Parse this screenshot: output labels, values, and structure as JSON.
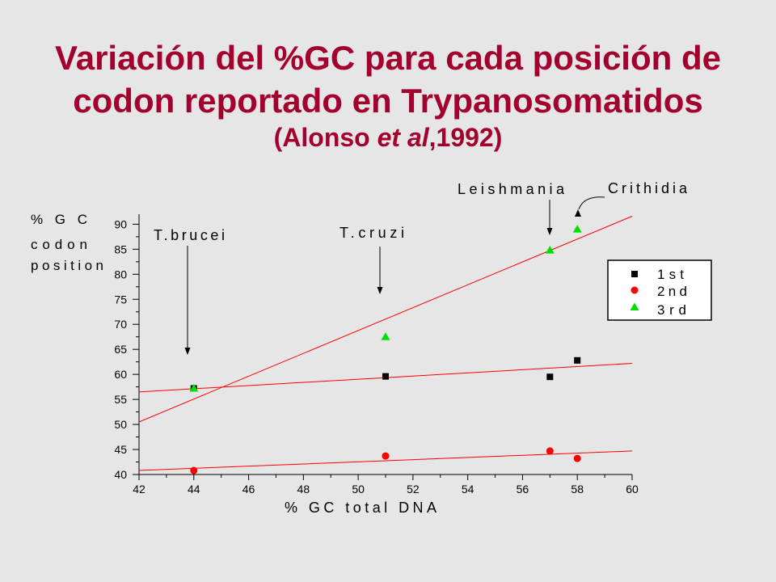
{
  "slide": {
    "title_lines": [
      "Variación del %GC para cada posición de",
      "codon reportado en Trypanosomatidos"
    ],
    "citation": {
      "prefix": "(Alonso ",
      "italic": "et al",
      "suffix": ",1992)"
    }
  },
  "colors": {
    "background": "#e6e6e6",
    "title": "#a3002e",
    "trendline": "#ff0000",
    "axis": "#000000"
  },
  "chart_data": {
    "type": "scatter",
    "xlabel": "% GC total DNA",
    "ylabel_lines": [
      "%GC",
      "codon",
      "position"
    ],
    "xlim": [
      42,
      60
    ],
    "ylim": [
      40,
      92
    ],
    "xticks": [
      42,
      44,
      46,
      48,
      50,
      52,
      54,
      56,
      58,
      60
    ],
    "yticks": [
      40,
      45,
      50,
      55,
      60,
      65,
      70,
      75,
      80,
      85,
      90
    ],
    "grid": false,
    "legend": "right",
    "series": [
      {
        "name": "1st",
        "marker": "square",
        "color": "#000000",
        "x": [
          44,
          51,
          57,
          58
        ],
        "y": [
          57.2,
          59.6,
          59.5,
          62.8
        ]
      },
      {
        "name": "2nd",
        "marker": "circle",
        "color": "#ff0000",
        "x": [
          44,
          51,
          57,
          58
        ],
        "y": [
          40.8,
          43.7,
          44.7,
          43.2
        ]
      },
      {
        "name": "3rd",
        "marker": "triangle",
        "color": "#00dd00",
        "x": [
          44,
          51,
          57,
          58
        ],
        "y": [
          57.2,
          67.5,
          84.8,
          89.0
        ]
      }
    ],
    "trendlines": [
      {
        "series": "1st",
        "x": [
          42,
          60
        ],
        "y": [
          56.5,
          62.2
        ]
      },
      {
        "series": "2nd",
        "x": [
          42,
          60
        ],
        "y": [
          40.8,
          44.7
        ]
      },
      {
        "series": "3rd",
        "x": [
          42,
          60
        ],
        "y": [
          50.5,
          91.6
        ]
      }
    ],
    "annotations": [
      {
        "text": "T.brucei",
        "x": 44
      },
      {
        "text": "T.cruzi",
        "x": 51
      },
      {
        "text": "Leishmania",
        "x": 57
      },
      {
        "text": "Crithidia",
        "x": 58
      }
    ]
  }
}
